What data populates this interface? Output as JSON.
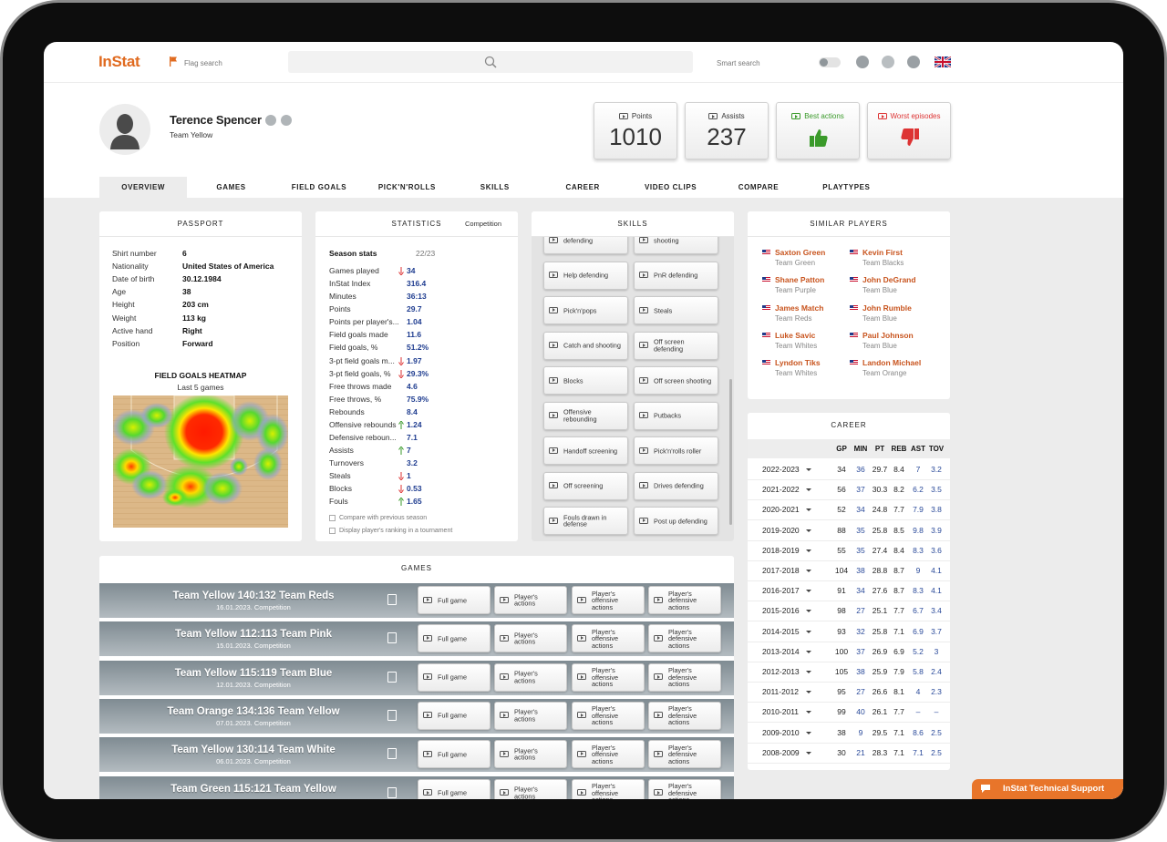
{
  "header": {
    "logo": "InStat",
    "flag_search": "Flag search",
    "smart_search": "Smart search"
  },
  "player": {
    "name": "Terence Spencer",
    "team": "Team Yellow"
  },
  "stat_cards": [
    {
      "label": "Points",
      "value": "1010"
    },
    {
      "label": "Assists",
      "value": "237"
    },
    {
      "label": "Best actions"
    },
    {
      "label": "Worst episodes"
    }
  ],
  "tabs": [
    "OVERVIEW",
    "GAMES",
    "FIELD GOALS",
    "PICK'N'ROLLS",
    "SKILLS",
    "CAREER",
    "VIDEO CLIPS",
    "COMPARE",
    "PLAYTYPES"
  ],
  "passport": {
    "title": "PASSPORT",
    "rows": [
      [
        "Shirt number",
        "6"
      ],
      [
        "Nationality",
        "United States of America"
      ],
      [
        "Date of birth",
        "30.12.1984"
      ],
      [
        "Age",
        "38"
      ],
      [
        "Height",
        "203 cm"
      ],
      [
        "Weight",
        "113 kg"
      ],
      [
        "Active hand",
        "Right"
      ],
      [
        "Position",
        "Forward"
      ]
    ],
    "heatmap_title": "FIELD GOALS HEATMAP",
    "heatmap_subtitle": "Last 5 games"
  },
  "statistics": {
    "title": "STATISTICS",
    "competition": "Competition",
    "season_label": "Season stats",
    "season": "22/23",
    "rows": [
      {
        "label": "Games played",
        "value": "34",
        "trend": "down"
      },
      {
        "label": "InStat Index",
        "value": "316.4"
      },
      {
        "label": "Minutes",
        "value": "36:13"
      },
      {
        "label": "Points",
        "value": "29.7"
      },
      {
        "label": "Points per player's...",
        "value": "1.04"
      },
      {
        "label": "Field goals made",
        "value": "11.6"
      },
      {
        "label": "Field goals, %",
        "value": "51.2%"
      },
      {
        "label": "3-pt field goals m...",
        "value": "1.97",
        "trend": "down"
      },
      {
        "label": "3-pt field goals, %",
        "value": "29.3%",
        "trend": "down"
      },
      {
        "label": "Free throws made",
        "value": "4.6"
      },
      {
        "label": "Free throws, %",
        "value": "75.9%"
      },
      {
        "label": "Rebounds",
        "value": "8.4"
      },
      {
        "label": "Offensive rebounds",
        "value": "1.24",
        "trend": "up"
      },
      {
        "label": "Defensive reboun...",
        "value": "7.1"
      },
      {
        "label": "Assists",
        "value": "7",
        "trend": "up"
      },
      {
        "label": "Turnovers",
        "value": "3.2"
      },
      {
        "label": "Steals",
        "value": "1",
        "trend": "down"
      },
      {
        "label": "Blocks",
        "value": "0.53",
        "trend": "down"
      },
      {
        "label": "Fouls",
        "value": "1.65",
        "trend": "up"
      }
    ],
    "checkboxes": [
      "Compare with previous season",
      "Display player's ranking in a tournament"
    ]
  },
  "skills": {
    "title": "SKILLS",
    "buttons": [
      "defending",
      "shooting",
      "Help defending",
      "PnR defending",
      "Pick'n'pops",
      "Steals",
      "Catch and shooting",
      "Off screen defending",
      "Blocks",
      "Off screen shooting",
      "Offensive rebounding",
      "Putbacks",
      "Handoff screening",
      "Pick'n'rolls roller",
      "Off screening",
      "Drives defending",
      "Fouls drawn in defense",
      "Post up defending"
    ]
  },
  "similar_players": {
    "title": "SIMILAR PLAYERS",
    "players": [
      {
        "name": "Saxton Green",
        "team": "Team Green"
      },
      {
        "name": "Kevin First",
        "team": "Team Blacks"
      },
      {
        "name": "Shane Patton",
        "team": "Team Purple"
      },
      {
        "name": "John DeGrand",
        "team": "Team Blue"
      },
      {
        "name": "James Match",
        "team": "Team Reds"
      },
      {
        "name": "John Rumble",
        "team": "Team Blue"
      },
      {
        "name": "Luke Savic",
        "team": "Team Whites"
      },
      {
        "name": "Paul Johnson",
        "team": "Team Blue"
      },
      {
        "name": "Lyndon Tiks",
        "team": "Team Whites"
      },
      {
        "name": "Landon Michael",
        "team": "Team Orange"
      }
    ]
  },
  "career": {
    "title": "CAREER",
    "columns": [
      "GP",
      "MIN",
      "PT",
      "REB",
      "AST",
      "TOV"
    ],
    "rows": [
      [
        "2022-2023",
        "34",
        "36",
        "29.7",
        "8.4",
        "7",
        "3.2"
      ],
      [
        "2021-2022",
        "56",
        "37",
        "30.3",
        "8.2",
        "6.2",
        "3.5"
      ],
      [
        "2020-2021",
        "52",
        "34",
        "24.8",
        "7.7",
        "7.9",
        "3.8"
      ],
      [
        "2019-2020",
        "88",
        "35",
        "25.8",
        "8.5",
        "9.8",
        "3.9"
      ],
      [
        "2018-2019",
        "55",
        "35",
        "27.4",
        "8.4",
        "8.3",
        "3.6"
      ],
      [
        "2017-2018",
        "104",
        "38",
        "28.8",
        "8.7",
        "9",
        "4.1"
      ],
      [
        "2016-2017",
        "91",
        "34",
        "27.6",
        "8.7",
        "8.3",
        "4.1"
      ],
      [
        "2015-2016",
        "98",
        "27",
        "25.1",
        "7.7",
        "6.7",
        "3.4"
      ],
      [
        "2014-2015",
        "93",
        "32",
        "25.8",
        "7.1",
        "6.9",
        "3.7"
      ],
      [
        "2013-2014",
        "100",
        "37",
        "26.9",
        "6.9",
        "5.2",
        "3"
      ],
      [
        "2012-2013",
        "105",
        "38",
        "25.9",
        "7.9",
        "5.8",
        "2.4"
      ],
      [
        "2011-2012",
        "95",
        "27",
        "26.6",
        "8.1",
        "4",
        "2.3"
      ],
      [
        "2010-2011",
        "99",
        "40",
        "26.1",
        "7.7",
        "–",
        "–"
      ],
      [
        "2009-2010",
        "38",
        "9",
        "29.5",
        "7.1",
        "8.6",
        "2.5"
      ],
      [
        "2008-2009",
        "30",
        "21",
        "28.3",
        "7.1",
        "7.1",
        "2.5"
      ]
    ]
  },
  "games": {
    "title": "GAMES",
    "buttons": [
      "Full game",
      "Player's actions",
      "Player's offensive actions",
      "Player's defensive actions"
    ],
    "rows": [
      {
        "score": "Team Yellow 140:132 Team Reds",
        "info": "16.01.2023. Competition"
      },
      {
        "score": "Team Yellow 112:113 Team Pink",
        "info": "15.01.2023. Competition"
      },
      {
        "score": "Team Yellow 115:119 Team Blue",
        "info": "12.01.2023. Competition"
      },
      {
        "score": "Team Orange 134:136 Team Yellow",
        "info": "07.01.2023. Competition"
      },
      {
        "score": "Team Yellow 130:114 Team White",
        "info": "06.01.2023. Competition"
      },
      {
        "score": "Team Green 115:121 Team Yellow"
      }
    ]
  },
  "support": "InStat Technical Support"
}
